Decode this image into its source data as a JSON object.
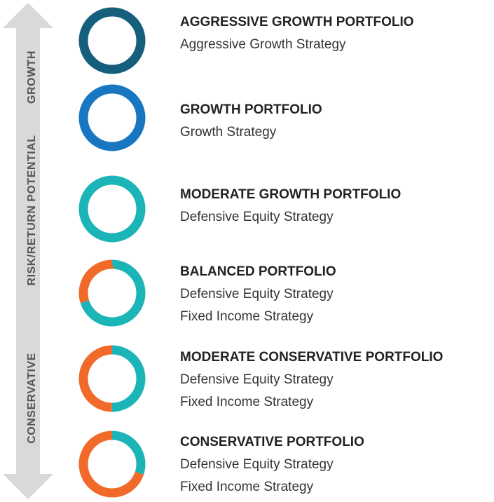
{
  "axis": {
    "top_label": "GROWTH",
    "middle_label": "RISK/RETURN POTENTIAL",
    "bottom_label": "CONSERVATIVE"
  },
  "portfolios": [
    {
      "title": "AGGRESSIVE GROWTH PORTFOLIO",
      "strategies": [
        "Aggressive Growth Strategy"
      ],
      "segments": [
        {
          "color": "#155f7d",
          "value": 100
        }
      ]
    },
    {
      "title": "GROWTH PORTFOLIO",
      "strategies": [
        "Growth Strategy"
      ],
      "segments": [
        {
          "color": "#1877c0",
          "value": 100
        }
      ]
    },
    {
      "title": "MODERATE GROWTH PORTFOLIO",
      "strategies": [
        "Defensive Equity Strategy"
      ],
      "segments": [
        {
          "color": "#1bb5b8",
          "value": 100
        }
      ]
    },
    {
      "title": "BALANCED PORTFOLIO",
      "strategies": [
        "Defensive Equity Strategy",
        "Fixed Income Strategy"
      ],
      "segments": [
        {
          "color": "#1bb5b8",
          "value": 70
        },
        {
          "color": "#f26a2a",
          "value": 30
        }
      ]
    },
    {
      "title": "MODERATE CONSERVATIVE PORTFOLIO",
      "strategies": [
        "Defensive Equity Strategy",
        "Fixed Income Strategy"
      ],
      "segments": [
        {
          "color": "#1bb5b8",
          "value": 50
        },
        {
          "color": "#f26a2a",
          "value": 50
        }
      ]
    },
    {
      "title": "CONSERVATIVE PORTFOLIO",
      "strategies": [
        "Defensive Equity Strategy",
        "Fixed Income Strategy"
      ],
      "segments": [
        {
          "color": "#1bb5b8",
          "value": 30
        },
        {
          "color": "#f26a2a",
          "value": 70
        }
      ]
    }
  ]
}
